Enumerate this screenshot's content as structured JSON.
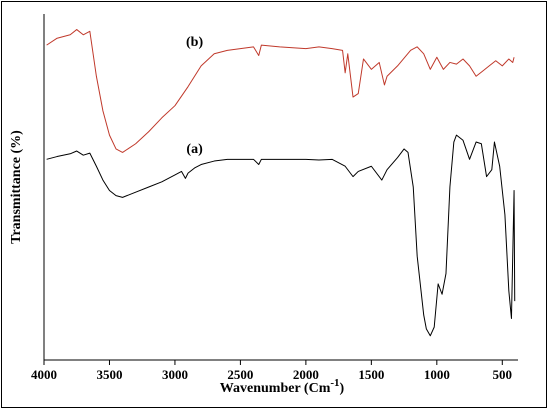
{
  "chart_data": {
    "type": "line",
    "title": "",
    "xlabel": "Wavenumber (Cm",
    "xlabel_superscript": "-1",
    "xlabel_close": ")",
    "ylabel": "Transmittance (%)",
    "xlim": [
      4000,
      380
    ],
    "x_reversed": true,
    "x_ticks": [
      4000,
      3500,
      3000,
      2500,
      2000,
      1500,
      1000,
      500
    ],
    "grid": false,
    "y_tick_labels_shown": false,
    "series": [
      {
        "name": "(a)",
        "color": "#000000",
        "points": [
          [
            3980,
            58.0
          ],
          [
            3900,
            58.8
          ],
          [
            3800,
            59.6
          ],
          [
            3750,
            60.4
          ],
          [
            3700,
            59.2
          ],
          [
            3650,
            59.8
          ],
          [
            3600,
            56.0
          ],
          [
            3550,
            52.0
          ],
          [
            3500,
            49.0
          ],
          [
            3450,
            47.5
          ],
          [
            3400,
            47.0
          ],
          [
            3300,
            48.5
          ],
          [
            3200,
            50.0
          ],
          [
            3100,
            51.5
          ],
          [
            3000,
            53.5
          ],
          [
            2950,
            54.5
          ],
          [
            2920,
            52.5
          ],
          [
            2900,
            54.0
          ],
          [
            2850,
            55.5
          ],
          [
            2800,
            56.5
          ],
          [
            2700,
            57.5
          ],
          [
            2600,
            58.0
          ],
          [
            2500,
            58.0
          ],
          [
            2400,
            58.0
          ],
          [
            2360,
            56.5
          ],
          [
            2340,
            58.0
          ],
          [
            2200,
            58.0
          ],
          [
            2000,
            58.0
          ],
          [
            1900,
            57.8
          ],
          [
            1800,
            58.0
          ],
          [
            1700,
            56.0
          ],
          [
            1640,
            53.0
          ],
          [
            1600,
            54.5
          ],
          [
            1500,
            56.0
          ],
          [
            1420,
            52.0
          ],
          [
            1380,
            55.0
          ],
          [
            1300,
            58.5
          ],
          [
            1250,
            61.0
          ],
          [
            1220,
            60.0
          ],
          [
            1180,
            50.0
          ],
          [
            1150,
            30.0
          ],
          [
            1100,
            13.0
          ],
          [
            1080,
            9.0
          ],
          [
            1050,
            7.0
          ],
          [
            1020,
            9.5
          ],
          [
            990,
            22.0
          ],
          [
            960,
            19.0
          ],
          [
            930,
            25.0
          ],
          [
            900,
            50.0
          ],
          [
            870,
            63.0
          ],
          [
            850,
            65.0
          ],
          [
            800,
            63.5
          ],
          [
            750,
            58.0
          ],
          [
            700,
            63.0
          ],
          [
            660,
            62.5
          ],
          [
            620,
            53.0
          ],
          [
            580,
            55.0
          ],
          [
            560,
            63.0
          ],
          [
            520,
            56.0
          ],
          [
            480,
            42.0
          ],
          [
            450,
            20.0
          ],
          [
            430,
            12.0
          ],
          [
            410,
            49.0
          ],
          [
            405,
            17.0
          ]
        ]
      },
      {
        "name": "(b)",
        "color": "#c0392b",
        "points": [
          [
            3980,
            91.0
          ],
          [
            3900,
            93.0
          ],
          [
            3800,
            94.0
          ],
          [
            3750,
            95.5
          ],
          [
            3700,
            94.0
          ],
          [
            3650,
            95.0
          ],
          [
            3600,
            82.0
          ],
          [
            3550,
            72.0
          ],
          [
            3500,
            65.0
          ],
          [
            3450,
            61.0
          ],
          [
            3400,
            60.0
          ],
          [
            3300,
            62.5
          ],
          [
            3200,
            66.0
          ],
          [
            3100,
            70.0
          ],
          [
            3000,
            73.5
          ],
          [
            2900,
            79.0
          ],
          [
            2800,
            85.0
          ],
          [
            2700,
            88.5
          ],
          [
            2600,
            89.5
          ],
          [
            2500,
            90.0
          ],
          [
            2400,
            90.5
          ],
          [
            2360,
            88.0
          ],
          [
            2340,
            91.0
          ],
          [
            2200,
            90.5
          ],
          [
            2000,
            90.0
          ],
          [
            1900,
            90.5
          ],
          [
            1800,
            90.0
          ],
          [
            1720,
            89.5
          ],
          [
            1700,
            83.0
          ],
          [
            1680,
            88.5
          ],
          [
            1640,
            76.0
          ],
          [
            1600,
            77.0
          ],
          [
            1560,
            87.0
          ],
          [
            1500,
            84.0
          ],
          [
            1440,
            86.0
          ],
          [
            1400,
            79.5
          ],
          [
            1380,
            82.0
          ],
          [
            1300,
            85.0
          ],
          [
            1200,
            89.5
          ],
          [
            1150,
            90.5
          ],
          [
            1100,
            88.5
          ],
          [
            1050,
            84.0
          ],
          [
            1000,
            87.5
          ],
          [
            950,
            84.0
          ],
          [
            900,
            86.0
          ],
          [
            850,
            85.5
          ],
          [
            800,
            87.0
          ],
          [
            750,
            85.0
          ],
          [
            700,
            82.0
          ],
          [
            650,
            83.5
          ],
          [
            600,
            85.0
          ],
          [
            550,
            86.5
          ],
          [
            500,
            85.0
          ],
          [
            450,
            87.0
          ],
          [
            420,
            86.0
          ],
          [
            410,
            87.5
          ]
        ]
      }
    ]
  }
}
